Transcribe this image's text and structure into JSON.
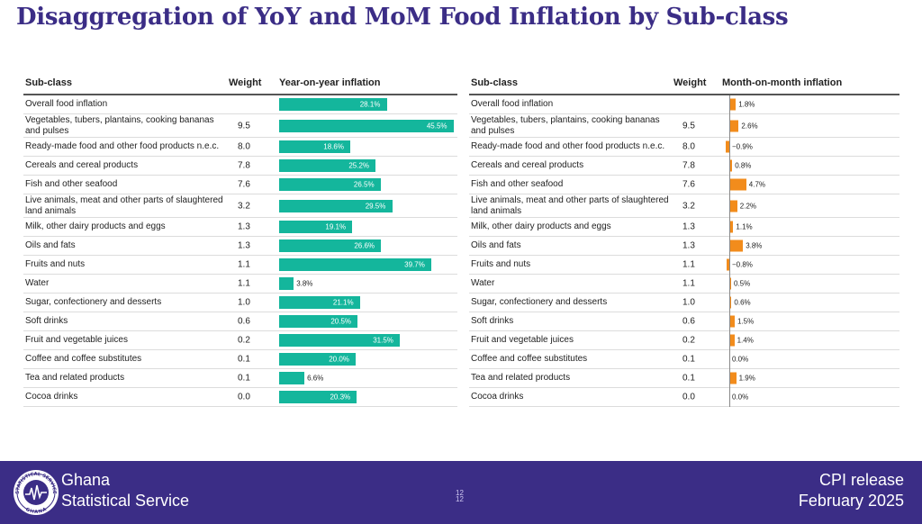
{
  "title": "Disaggregation of YoY and MoM Food Inflation by Sub-class",
  "yoy_table": {
    "headers": {
      "subclass": "Sub-class",
      "weight": "Weight",
      "value": "Year-on-year inflation"
    }
  },
  "mom_table": {
    "headers": {
      "subclass": "Sub-class",
      "weight": "Weight",
      "value": "Month-on-month inflation"
    }
  },
  "chart_data": [
    {
      "type": "bar",
      "orientation": "horizontal",
      "title": "Year-on-year inflation",
      "unit": "%",
      "xlim": [
        0,
        46
      ],
      "categories": [
        "Overall food inflation",
        "Vegetables, tubers, plantains, cooking bananas and pulses",
        "Ready-made food and other food products n.e.c.",
        "Cereals and cereal products",
        "Fish and other seafood",
        "Live animals, meat and other parts of slaughtered land animals",
        "Milk, other dairy products and eggs",
        "Oils and fats",
        "Fruits and nuts",
        "Water",
        "Sugar, confectionery and desserts",
        "Soft drinks",
        "Fruit and vegetable juices",
        "Coffee and coffee substitutes",
        "Tea and related products",
        "Cocoa drinks"
      ],
      "weights": [
        "",
        "9.5",
        "8.0",
        "7.8",
        "7.6",
        "3.2",
        "1.3",
        "1.3",
        "1.1",
        "1.1",
        "1.0",
        "0.6",
        "0.2",
        "0.1",
        "0.1",
        "0.0"
      ],
      "values": [
        28.1,
        45.5,
        18.6,
        25.2,
        26.5,
        29.5,
        19.1,
        26.6,
        39.7,
        3.8,
        21.1,
        20.5,
        31.5,
        20.0,
        6.6,
        20.3
      ],
      "value_labels": [
        "28.1%",
        "45.5%",
        "18.6%",
        "25.2%",
        "26.5%",
        "29.5%",
        "19.1%",
        "26.6%",
        "39.7%",
        "3.8%",
        "21.1%",
        "20.5%",
        "31.5%",
        "20.0%",
        "6.6%",
        "20.3%"
      ],
      "color": "#14b69c"
    },
    {
      "type": "bar",
      "orientation": "horizontal",
      "title": "Month-on-month inflation",
      "unit": "%",
      "xlim": [
        -1,
        5
      ],
      "categories": [
        "Overall food inflation",
        "Vegetables, tubers, plantains, cooking bananas and pulses",
        "Ready-made food and other food products n.e.c.",
        "Cereals and cereal products",
        "Fish and other seafood",
        "Live animals, meat and other parts of slaughtered land animals",
        "Milk, other dairy products and eggs",
        "Oils and fats",
        "Fruits and nuts",
        "Water",
        "Sugar, confectionery and desserts",
        "Soft drinks",
        "Fruit and vegetable juices",
        "Coffee and coffee substitutes",
        "Tea and related products",
        "Cocoa drinks"
      ],
      "weights": [
        "",
        "9.5",
        "8.0",
        "7.8",
        "7.6",
        "3.2",
        "1.3",
        "1.3",
        "1.1",
        "1.1",
        "1.0",
        "0.6",
        "0.2",
        "0.1",
        "0.1",
        "0.0"
      ],
      "values": [
        1.8,
        2.6,
        -0.9,
        0.8,
        4.7,
        2.2,
        1.1,
        3.8,
        -0.8,
        0.5,
        0.6,
        1.5,
        1.4,
        0.0,
        1.9,
        0.0
      ],
      "value_labels": [
        "1.8%",
        "2.6%",
        "−0.9%",
        "0.8%",
        "4.7%",
        "2.2%",
        "1.1%",
        "3.8%",
        "−0.8%",
        "0.5%",
        "0.6%",
        "1.5%",
        "1.4%",
        "0.0%",
        "1.9%",
        "0.0%"
      ],
      "color": "#f28c1c"
    }
  ],
  "footer": {
    "org_line1": "Ghana",
    "org_line2": "Statistical Service",
    "logo_text_top": "STATISTICAL SERVICE",
    "logo_text_bottom": "GHANA",
    "page_number_top": "12",
    "page_number_bottom": "12",
    "release_line1": "CPI release",
    "release_line2": "February  2025",
    "colors": {
      "background": "#3b2d86",
      "title": "#3b2d86"
    }
  }
}
